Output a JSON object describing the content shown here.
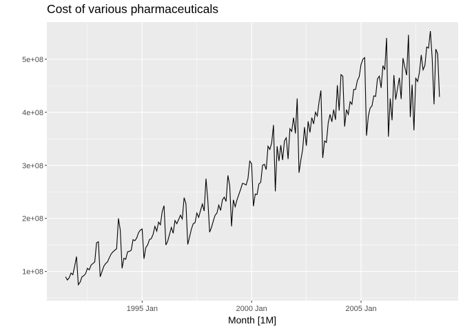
{
  "chart_data": {
    "type": "line",
    "title": "Cost of various pharmaceuticals",
    "xlabel": "Month [1M]",
    "ylabel": "",
    "x_start": "1991 Jul",
    "x_end": "2008 Jun",
    "x_ticks": [
      "1995 Jan",
      "2000 Jan",
      "2005 Jan"
    ],
    "y_ticks": [
      "1e+08",
      "2e+08",
      "3e+08",
      "4e+08",
      "5e+08"
    ],
    "ylim": [
      45000000,
      570000000
    ],
    "grid": true,
    "legend": "none",
    "colors": {
      "panel": "#ebebeb",
      "grid": "#ffffff",
      "line": "#000000"
    },
    "series": [
      {
        "values": [
          90000000,
          84000000,
          88000000,
          97000000,
          94000000,
          110000000,
          128000000,
          75000000,
          80000000,
          90000000,
          92000000,
          96000000,
          106000000,
          103000000,
          112000000,
          115000000,
          118000000,
          154000000,
          156000000,
          90000000,
          100000000,
          110000000,
          115000000,
          118000000,
          126000000,
          133000000,
          137000000,
          140000000,
          143000000,
          200000000,
          178000000,
          106000000,
          125000000,
          123000000,
          137000000,
          138000000,
          140000000,
          160000000,
          158000000,
          163000000,
          173000000,
          178000000,
          180000000,
          124000000,
          145000000,
          150000000,
          160000000,
          162000000,
          170000000,
          185000000,
          176000000,
          193000000,
          188000000,
          213000000,
          224000000,
          150000000,
          157000000,
          170000000,
          183000000,
          172000000,
          196000000,
          190000000,
          198000000,
          206000000,
          199000000,
          239000000,
          228000000,
          151000000,
          165000000,
          180000000,
          190000000,
          192000000,
          210000000,
          202000000,
          215000000,
          227000000,
          214000000,
          275000000,
          234000000,
          174000000,
          183000000,
          195000000,
          206000000,
          210000000,
          225000000,
          215000000,
          235000000,
          240000000,
          232000000,
          281000000,
          262000000,
          185000000,
          235000000,
          222000000,
          235000000,
          245000000,
          255000000,
          266000000,
          265000000,
          263000000,
          275000000,
          308000000,
          303000000,
          223000000,
          246000000,
          245000000,
          265000000,
          268000000,
          300000000,
          302000000,
          292000000,
          336000000,
          330000000,
          342000000,
          376000000,
          251000000,
          336000000,
          308000000,
          338000000,
          310000000,
          346000000,
          352000000,
          312000000,
          369000000,
          364000000,
          390000000,
          360000000,
          426000000,
          286000000,
          310000000,
          330000000,
          372000000,
          337000000,
          383000000,
          362000000,
          390000000,
          378000000,
          400000000,
          393000000,
          420000000,
          441000000,
          314000000,
          346000000,
          343000000,
          380000000,
          396000000,
          382000000,
          405000000,
          386000000,
          451000000,
          403000000,
          471000000,
          468000000,
          373000000,
          405000000,
          396000000,
          420000000,
          415000000,
          443000000,
          443000000,
          460000000,
          467000000,
          490000000,
          500000000,
          503000000,
          356000000,
          393000000,
          408000000,
          412000000,
          431000000,
          430000000,
          463000000,
          468000000,
          446000000,
          488000000,
          480000000,
          540000000,
          354000000,
          426000000,
          385000000,
          470000000,
          424000000,
          445000000,
          465000000,
          425000000,
          502000000,
          485000000,
          470000000,
          546000000,
          391000000,
          452000000,
          366000000,
          464000000,
          458000000,
          475000000,
          508000000,
          480000000,
          488000000,
          523000000,
          521000000,
          553000000,
          502000000,
          415000000,
          519000000,
          510000000,
          429000000
        ]
      }
    ]
  }
}
